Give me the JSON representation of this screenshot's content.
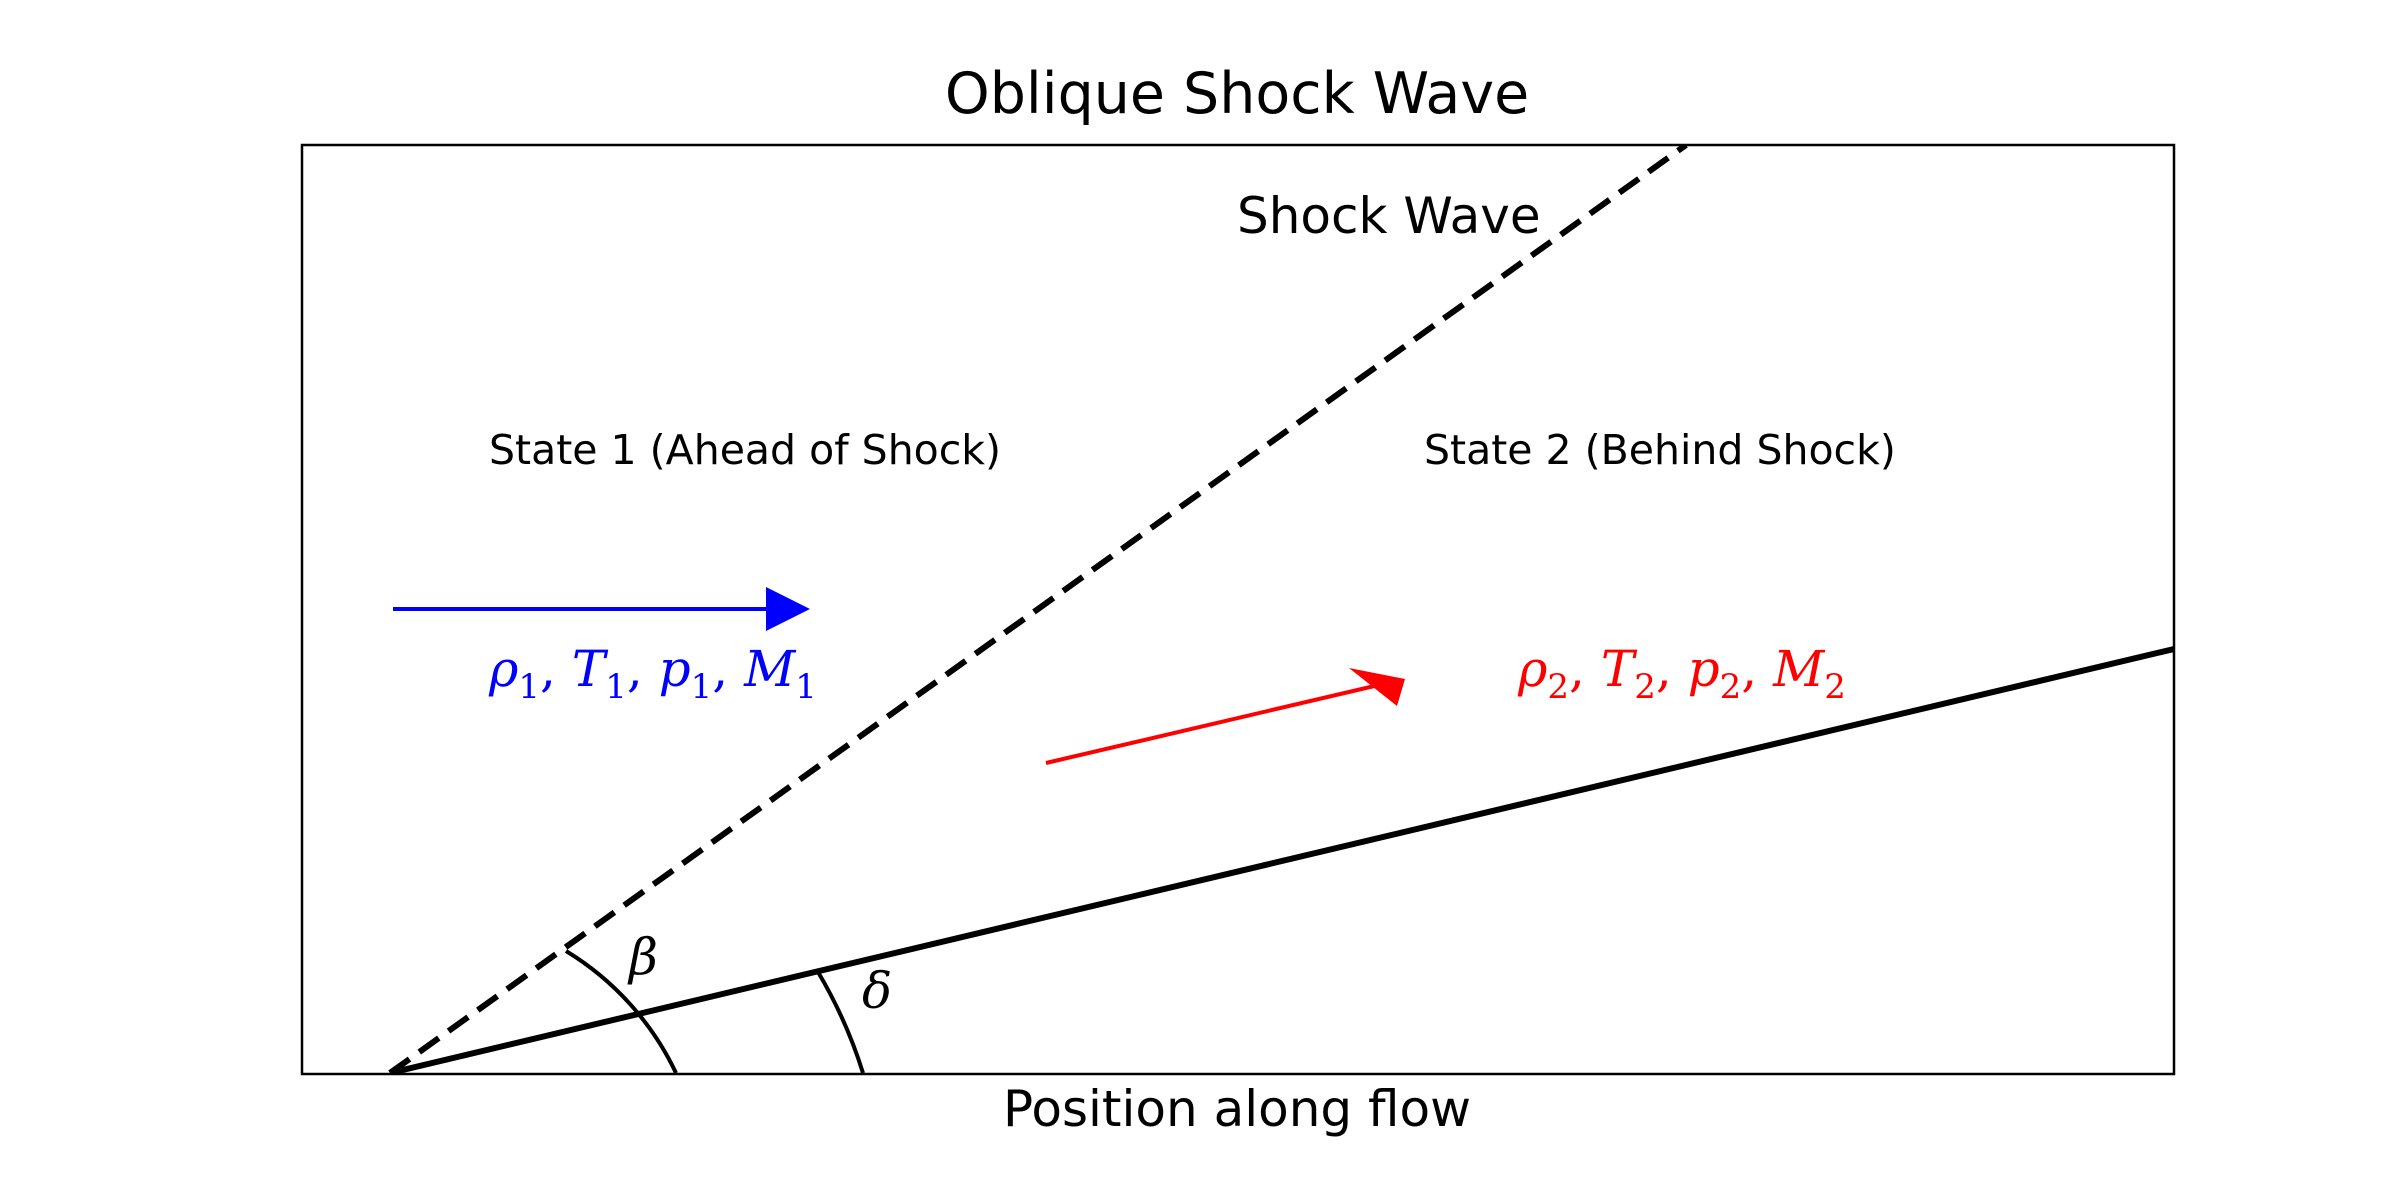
{
  "diagram": {
    "title": "Oblique Shock Wave",
    "xlabel": "Position along flow",
    "shock_label": "Shock Wave",
    "state1_label": "State 1 (Ahead of Shock)",
    "state2_label": "State 2 (Behind Shock)",
    "state1_vars": {
      "rho": "ρ",
      "rho_sub": "1",
      "T": "T",
      "T_sub": "1",
      "p": "p",
      "p_sub": "1",
      "M": "M",
      "M_sub": "1"
    },
    "state2_vars": {
      "rho": "ρ",
      "rho_sub": "2",
      "T": "T",
      "T_sub": "2",
      "p": "p",
      "p_sub": "2",
      "M": "M",
      "M_sub": "2"
    },
    "beta_label": "β",
    "delta_label": "δ",
    "colors": {
      "state1": "#0000ff",
      "state2": "#ff0000",
      "lines": "#000000"
    }
  }
}
